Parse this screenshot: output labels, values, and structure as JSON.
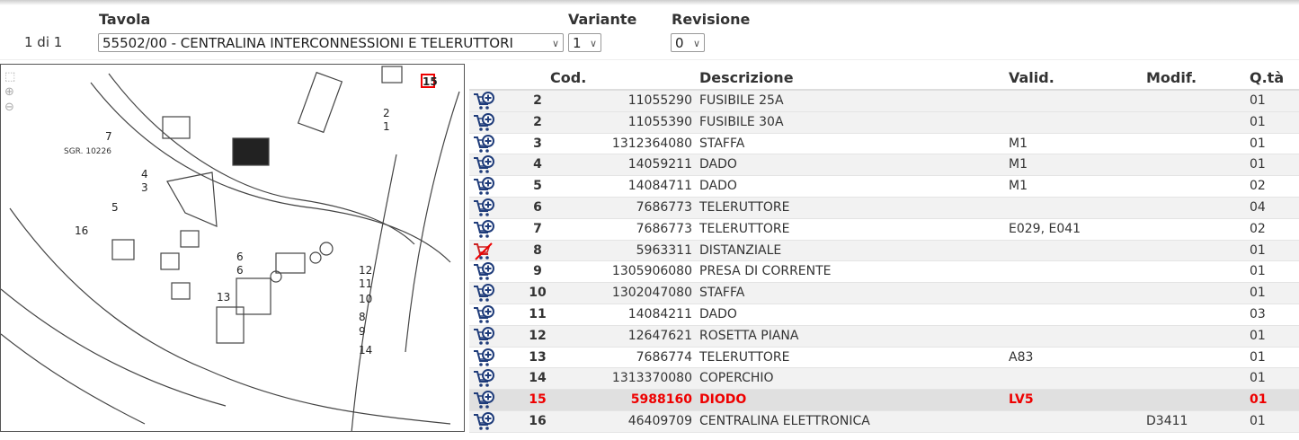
{
  "header": {
    "tavola_label": "Tavola",
    "variante_label": "Variante",
    "revisione_label": "Revisione",
    "page_info": "1 di 1",
    "tavola_value": "55502/00 - CENTRALINA INTERCONNESSIONI E TELERUTTORI",
    "variante_value": "1",
    "revisione_value": "0"
  },
  "diagram": {
    "tools": [
      "fit-icon",
      "zoom-in-icon",
      "zoom-out-icon"
    ],
    "code_label": "SGR. 10226",
    "callouts": [
      "1",
      "2",
      "3",
      "4",
      "5",
      "6",
      "6",
      "7",
      "8",
      "9",
      "10",
      "11",
      "12",
      "13",
      "14",
      "15",
      "16"
    ],
    "highlight": "15"
  },
  "table": {
    "columns": {
      "cod": "Cod.",
      "desc": "Descrizione",
      "valid": "Valid.",
      "modif": "Modif.",
      "qta": "Q.tà"
    },
    "colors": {
      "highlight": "#e00000",
      "cart": "#1f3c7a",
      "cart_disabled": "#cc2222"
    },
    "rows": [
      {
        "pos": "2",
        "cod": "11055290",
        "desc": "FUSIBILE 25A",
        "valid": "",
        "modif": "",
        "qta": "01",
        "icon": "cart-add-icon"
      },
      {
        "pos": "2",
        "cod": "11055390",
        "desc": "FUSIBILE 30A",
        "valid": "",
        "modif": "",
        "qta": "01",
        "icon": "cart-add-icon"
      },
      {
        "pos": "3",
        "cod": "1312364080",
        "desc": "STAFFA",
        "valid": "M1",
        "modif": "",
        "qta": "01",
        "icon": "cart-add-icon"
      },
      {
        "pos": "4",
        "cod": "14059211",
        "desc": "DADO",
        "valid": "M1",
        "modif": "",
        "qta": "01",
        "icon": "cart-add-icon"
      },
      {
        "pos": "5",
        "cod": "14084711",
        "desc": "DADO",
        "valid": "M1",
        "modif": "",
        "qta": "02",
        "icon": "cart-add-icon"
      },
      {
        "pos": "6",
        "cod": "7686773",
        "desc": "TELERUTTORE",
        "valid": "",
        "modif": "",
        "qta": "04",
        "icon": "cart-add-icon"
      },
      {
        "pos": "7",
        "cod": "7686773",
        "desc": "TELERUTTORE",
        "valid": "E029, E041",
        "modif": "",
        "qta": "02",
        "icon": "cart-add-icon"
      },
      {
        "pos": "8",
        "cod": "5963311",
        "desc": "DISTANZIALE",
        "valid": "",
        "modif": "",
        "qta": "01",
        "icon": "cart-unavailable-icon"
      },
      {
        "pos": "9",
        "cod": "1305906080",
        "desc": "PRESA DI CORRENTE",
        "valid": "",
        "modif": "",
        "qta": "01",
        "icon": "cart-add-icon"
      },
      {
        "pos": "10",
        "cod": "1302047080",
        "desc": "STAFFA",
        "valid": "",
        "modif": "",
        "qta": "01",
        "icon": "cart-add-icon"
      },
      {
        "pos": "11",
        "cod": "14084211",
        "desc": "DADO",
        "valid": "",
        "modif": "",
        "qta": "03",
        "icon": "cart-add-icon"
      },
      {
        "pos": "12",
        "cod": "12647621",
        "desc": "ROSETTA PIANA",
        "valid": "",
        "modif": "",
        "qta": "01",
        "icon": "cart-add-icon"
      },
      {
        "pos": "13",
        "cod": "7686774",
        "desc": "TELERUTTORE",
        "valid": "A83",
        "modif": "",
        "qta": "01",
        "icon": "cart-add-icon"
      },
      {
        "pos": "14",
        "cod": "1313370080",
        "desc": "COPERCHIO",
        "valid": "",
        "modif": "",
        "qta": "01",
        "icon": "cart-add-icon"
      },
      {
        "pos": "15",
        "cod": "5988160",
        "desc": "DIODO",
        "valid": "LV5",
        "modif": "",
        "qta": "01",
        "icon": "cart-add-icon",
        "selected": true
      },
      {
        "pos": "16",
        "cod": "46409709",
        "desc": "CENTRALINA ELETTRONICA",
        "valid": "",
        "modif": "D3411",
        "qta": "01",
        "icon": "cart-add-icon"
      }
    ]
  }
}
